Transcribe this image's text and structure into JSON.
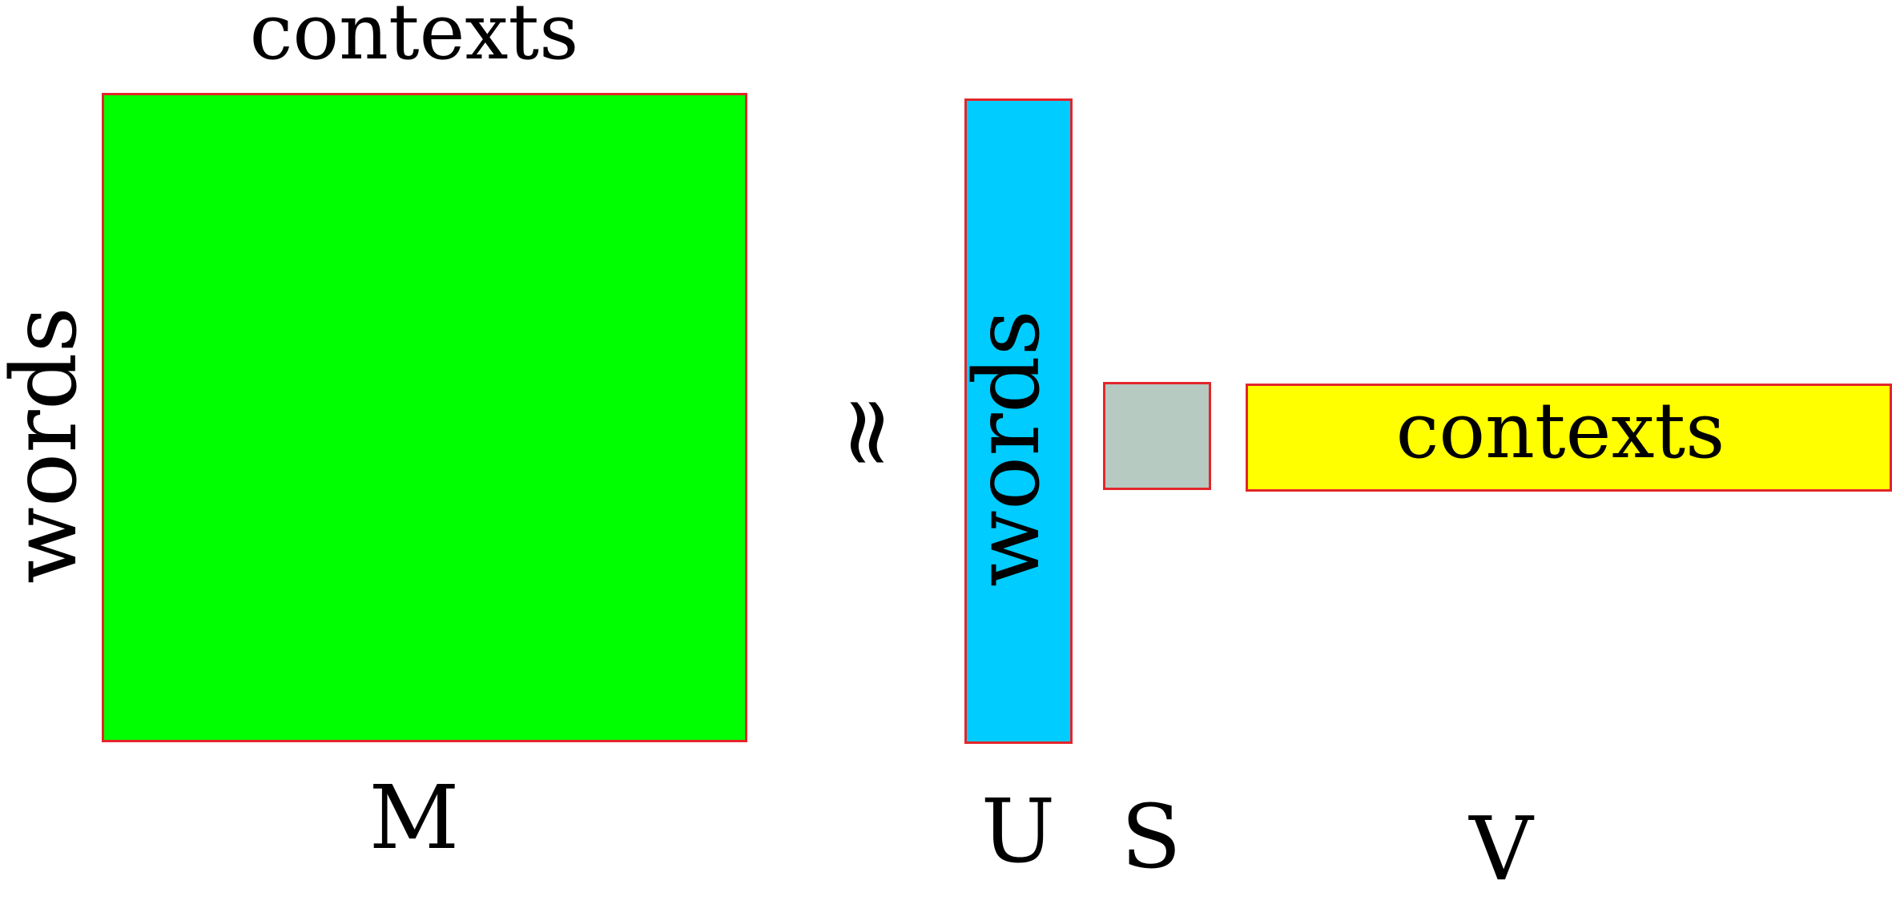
{
  "matrix_m": {
    "label": "M",
    "top_label": "contexts",
    "side_label": "words",
    "fill": "#00ff00"
  },
  "approx_symbol": "≈",
  "matrix_u": {
    "label": "U",
    "inner_label": "words",
    "fill": "#00ccff"
  },
  "matrix_s": {
    "label": "S",
    "fill": "#b6cac2"
  },
  "matrix_v": {
    "label": "V",
    "inner_label": "contexts",
    "fill": "#ffff00"
  },
  "border_color": "#e3262b"
}
